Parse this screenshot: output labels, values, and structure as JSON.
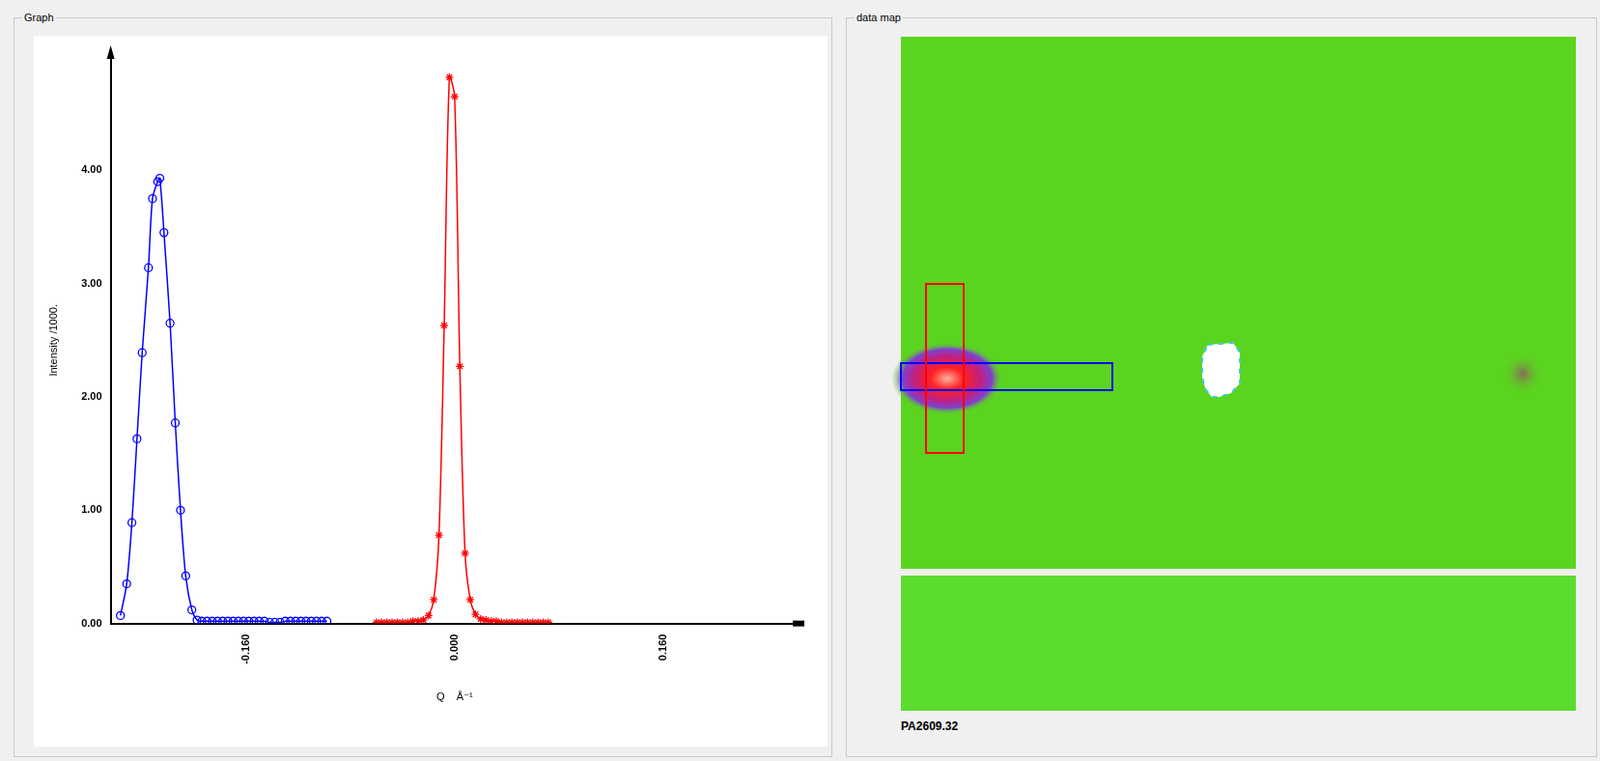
{
  "panels": {
    "graph": "Graph",
    "data_map": "data map"
  },
  "chart_data": {
    "type": "line",
    "x_label": "Q    Å⁻¹",
    "y_label": "Intensity /1000.",
    "xlim": [
      -0.264,
      0.264
    ],
    "xticks": [
      {
        "value": -0.16,
        "label": "-0.160"
      },
      {
        "value": 0,
        "label": "0.000"
      },
      {
        "value": 0.16,
        "label": "0.160"
      }
    ],
    "ylim": [
      0,
      5.0
    ],
    "yticks": [
      {
        "value": 0,
        "label": "0.00"
      },
      {
        "value": 1,
        "label": "1.00"
      },
      {
        "value": 2,
        "label": "2.00"
      },
      {
        "value": 3,
        "label": "3.00"
      },
      {
        "value": 4,
        "label": "4.00"
      }
    ],
    "grid": false,
    "series": [
      {
        "color": "#0000ff",
        "marker": "circle",
        "line_style": "solid",
        "x": [
          -0.2565,
          -0.2517,
          -0.2477,
          -0.2438,
          -0.2398,
          -0.235,
          -0.2319,
          -0.2279,
          -0.2263,
          -0.2231,
          -0.2184,
          -0.2144,
          -0.2104,
          -0.2064,
          -0.2017,
          -0.1977,
          -0.194,
          -0.19,
          -0.186,
          -0.182,
          -0.178,
          -0.174,
          -0.17,
          -0.166,
          -0.162,
          -0.158,
          -0.154,
          -0.15,
          -0.146,
          -0.142,
          -0.138,
          -0.134,
          -0.13,
          -0.126,
          -0.122,
          -0.118,
          -0.114,
          -0.11,
          -0.106,
          -0.102,
          -0.098
        ],
        "values": [
          0.07,
          0.35,
          0.89,
          1.63,
          2.39,
          3.14,
          3.75,
          3.9,
          3.93,
          3.45,
          2.65,
          1.77,
          1.0,
          0.42,
          0.12,
          0.03,
          0.02,
          0.02,
          0.02,
          0.02,
          0.02,
          0.02,
          0.02,
          0.02,
          0.02,
          0.02,
          0.02,
          0.02,
          0.02,
          0.01,
          0.01,
          0.01,
          0.02,
          0.02,
          0.02,
          0.02,
          0.02,
          0.02,
          0.02,
          0.02,
          0.02
        ]
      },
      {
        "color": "#ff0000",
        "marker": "star",
        "line_style": "solid",
        "x": [
          -0.06,
          -0.056,
          -0.052,
          -0.048,
          -0.044,
          -0.04,
          -0.036,
          -0.032,
          -0.028,
          -0.024,
          -0.02,
          -0.016,
          -0.012,
          -0.008,
          -0.004,
          0.0,
          0.004,
          0.008,
          0.012,
          0.016,
          0.02,
          0.024,
          0.028,
          0.032,
          0.036,
          0.04,
          0.044,
          0.048,
          0.052,
          0.056,
          0.06,
          0.064,
          0.068,
          0.072
        ],
        "values": [
          0.01,
          0.01,
          0.01,
          0.01,
          0.01,
          0.01,
          0.01,
          0.02,
          0.02,
          0.03,
          0.07,
          0.21,
          0.78,
          2.63,
          4.82,
          4.65,
          2.27,
          0.62,
          0.21,
          0.08,
          0.04,
          0.03,
          0.02,
          0.02,
          0.01,
          0.01,
          0.01,
          0.01,
          0.01,
          0.01,
          0.01,
          0.01,
          0.01,
          0.01
        ]
      }
    ]
  },
  "data_map": {
    "label": "PA2609.32"
  }
}
